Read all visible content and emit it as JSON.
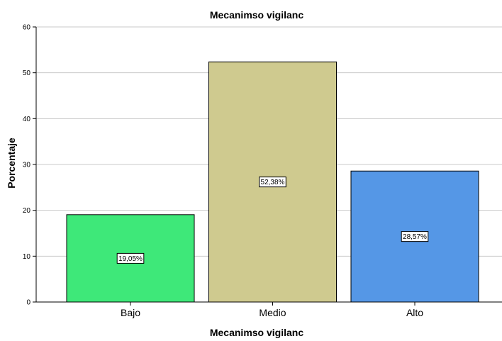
{
  "chart_data": {
    "type": "bar",
    "title": "Mecanimso vigilanc",
    "xlabel": "Mecanimso vigilanc",
    "ylabel": "Porcentaje",
    "categories": [
      "Bajo",
      "Medio",
      "Alto"
    ],
    "values": [
      19.05,
      52.38,
      28.57
    ],
    "data_labels": [
      "19,05%",
      "52,38%",
      "28,57%"
    ],
    "colors": [
      "#3ee879",
      "#cfca8f",
      "#5597e6"
    ],
    "ylim": [
      0,
      60
    ],
    "yticks": [
      0,
      10,
      20,
      30,
      40,
      50,
      60
    ],
    "grid": true,
    "legend": "none"
  }
}
